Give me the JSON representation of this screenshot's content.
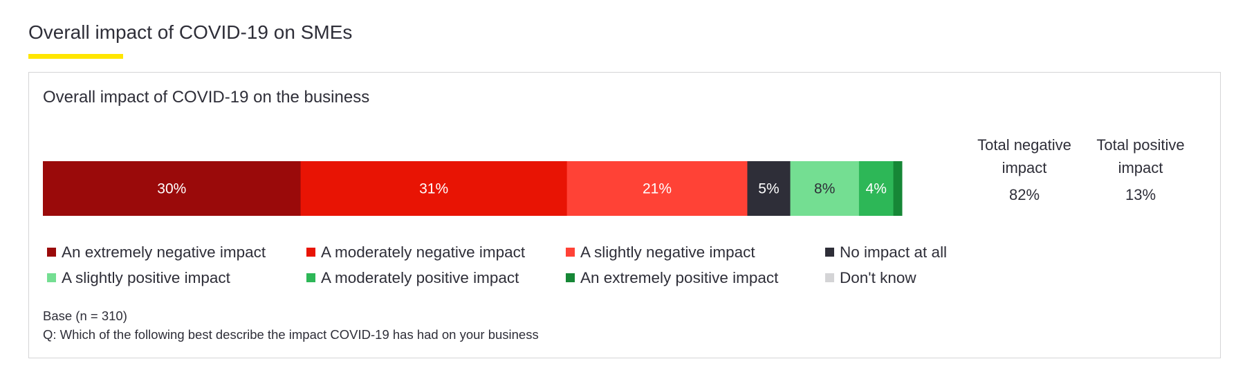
{
  "page_title": "Overall impact of COVID-19 on SMEs",
  "colors": {
    "accent_underline": "#ffe600",
    "text": "#2e2e38",
    "card_border": "#d4d4d6"
  },
  "chart_data": {
    "type": "bar",
    "orientation": "horizontal-stacked",
    "title": "Overall impact of COVID-19 on the business",
    "xlim": [
      0,
      100
    ],
    "series": [
      {
        "name": "An extremely negative impact",
        "value": 30,
        "label": "30%",
        "color": "#9a0a0a",
        "label_color": "#ffffff"
      },
      {
        "name": "A moderately negative impact",
        "value": 31,
        "label": "31%",
        "color": "#e81404",
        "label_color": "#ffffff"
      },
      {
        "name": "A slightly negative impact",
        "value": 21,
        "label": "21%",
        "color": "#ff4236",
        "label_color": "#ffffff"
      },
      {
        "name": "No impact at all",
        "value": 5,
        "label": "5%",
        "color": "#2e2e38",
        "label_color": "#ffffff"
      },
      {
        "name": "A slightly positive impact",
        "value": 8,
        "label": "8%",
        "color": "#74de92",
        "label_color": "#2e2e38"
      },
      {
        "name": "A moderately positive impact",
        "value": 4,
        "label": "4%",
        "color": "#2db757",
        "label_color": "#ffffff"
      },
      {
        "name": "An extremely positive impact",
        "value": 1,
        "label": "",
        "color": "#168736",
        "label_color": "#ffffff"
      },
      {
        "name": "Don't know",
        "value": 0,
        "label": "",
        "color": "#d4d4d6",
        "label_color": "#2e2e38"
      }
    ],
    "totals": [
      {
        "label": "Total negative impact",
        "value": "82%"
      },
      {
        "label": "Total positive impact",
        "value": "13%"
      }
    ],
    "base": "Base (n = 310)",
    "question": "Q: Which of the following best describe the impact COVID-19 has had on your business"
  }
}
